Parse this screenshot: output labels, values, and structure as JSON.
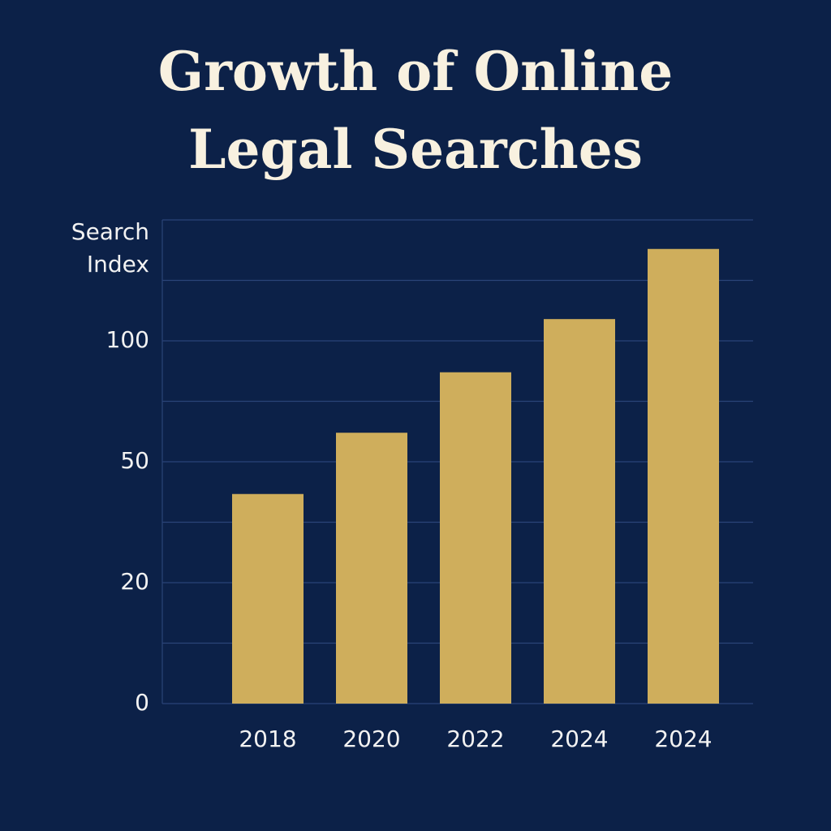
{
  "chart_data": {
    "type": "bar",
    "title": "Growth of Online Legal Searches",
    "y_label": "Search Index",
    "categories": [
      "2018",
      "2020",
      "2022",
      "2024",
      "2024"
    ],
    "values": [
      42,
      62,
      87,
      109,
      138
    ],
    "color": "#cfae5c",
    "ylim": [
      0,
      150
    ],
    "yticks": [
      0,
      20,
      50,
      100
    ],
    "grid": true
  }
}
